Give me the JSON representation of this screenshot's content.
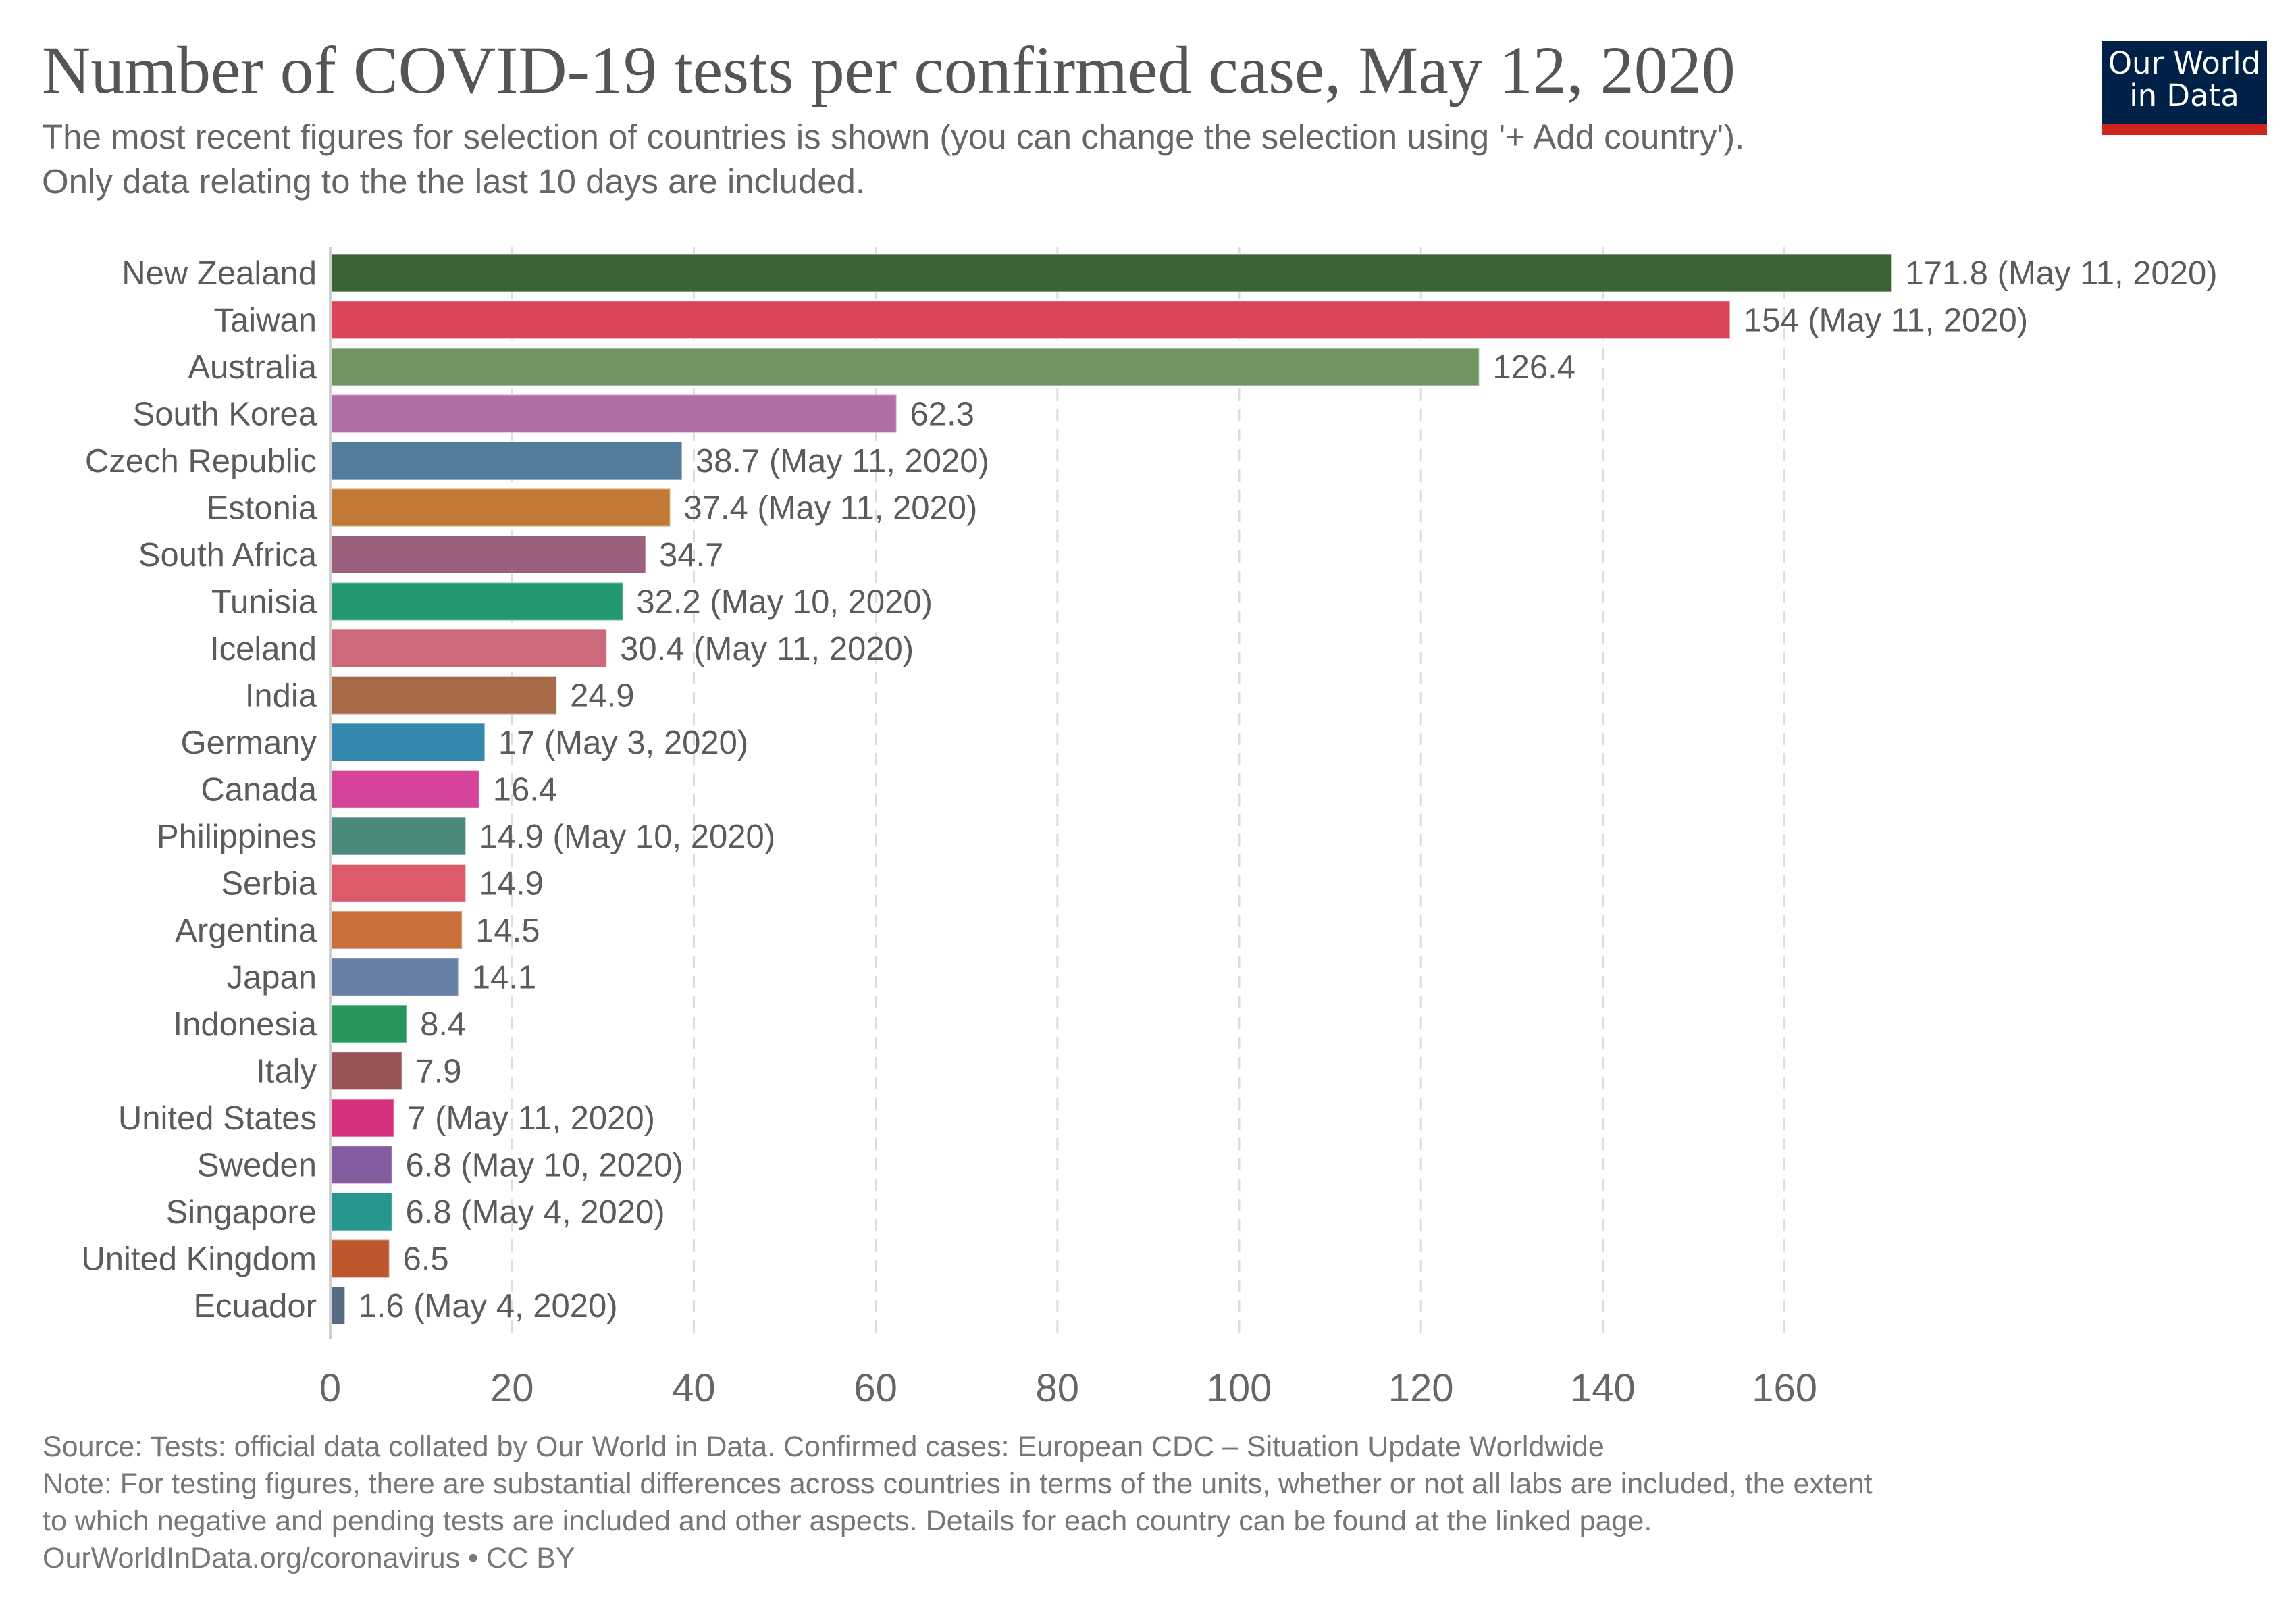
{
  "header": {
    "title": "Number of COVID-19 tests per confirmed case, May 12, 2020",
    "subtitle_lines": [
      "The most recent figures for selection of countries is shown (you can change the selection using '+ Add country').",
      "Only data relating to the the last 10 days are included."
    ]
  },
  "logo": {
    "line1": "Our World",
    "line2": "in Data",
    "bg_color": "#002147",
    "band_color": "#ce261e"
  },
  "chart_data": {
    "type": "bar",
    "orientation": "horizontal",
    "title": "Number of COVID-19 tests per confirmed case, May 12, 2020",
    "xlabel": "",
    "ylabel": "",
    "xlim": [
      0,
      175
    ],
    "xticks": [
      0,
      20,
      40,
      60,
      80,
      100,
      120,
      140,
      160
    ],
    "grid": "vertical dashed",
    "categories": [
      "New Zealand",
      "Taiwan",
      "Australia",
      "South Korea",
      "Czech Republic",
      "Estonia",
      "South Africa",
      "Tunisia",
      "Iceland",
      "India",
      "Germany",
      "Canada",
      "Philippines",
      "Serbia",
      "Argentina",
      "Japan",
      "Indonesia",
      "Italy",
      "United States",
      "Sweden",
      "Singapore",
      "United Kingdom",
      "Ecuador"
    ],
    "values": [
      171.8,
      154,
      126.4,
      62.3,
      38.7,
      37.4,
      34.7,
      32.2,
      30.4,
      24.9,
      17,
      16.4,
      14.9,
      14.9,
      14.5,
      14.1,
      8.4,
      7.9,
      7,
      6.8,
      6.8,
      6.5,
      1.6
    ],
    "value_labels": [
      "171.8 (May 11, 2020)",
      "154 (May 11, 2020)",
      "126.4",
      "62.3",
      "38.7 (May 11, 2020)",
      "37.4 (May 11, 2020)",
      "34.7",
      "32.2 (May 10, 2020)",
      "30.4 (May 11, 2020)",
      "24.9",
      "17 (May 3, 2020)",
      "16.4",
      "14.9 (May 10, 2020)",
      "14.9",
      "14.5",
      "14.1",
      "8.4",
      "7.9",
      "7 (May 11, 2020)",
      "6.8 (May 10, 2020)",
      "6.8 (May 4, 2020)",
      "6.5",
      "1.6 (May 4, 2020)"
    ],
    "colors": [
      "#3b6334",
      "#dc4459",
      "#719460",
      "#b06ea8",
      "#547c9c",
      "#c17935",
      "#9b607d",
      "#24996f",
      "#cc6a7c",
      "#a66a47",
      "#3488ad",
      "#d5449a",
      "#4b887d",
      "#dc5a6a",
      "#c9703a",
      "#687fa8",
      "#28975b",
      "#985357",
      "#d5317c",
      "#845ca0",
      "#26968e",
      "#be562e",
      "#566a80"
    ]
  },
  "footer": {
    "source": "Source: Tests: official data collated by Our World in Data. Confirmed cases: European CDC – Situation Update Worldwide",
    "note_line1": "Note: For testing figures, there are substantial differences across countries in terms of the units, whether or not all labs are included, the extent",
    "note_line2": "to which negative and pending tests are included and other aspects. Details for each country can be found at the linked page.",
    "url_license": "OurWorldInData.org/coronavirus • CC BY"
  }
}
